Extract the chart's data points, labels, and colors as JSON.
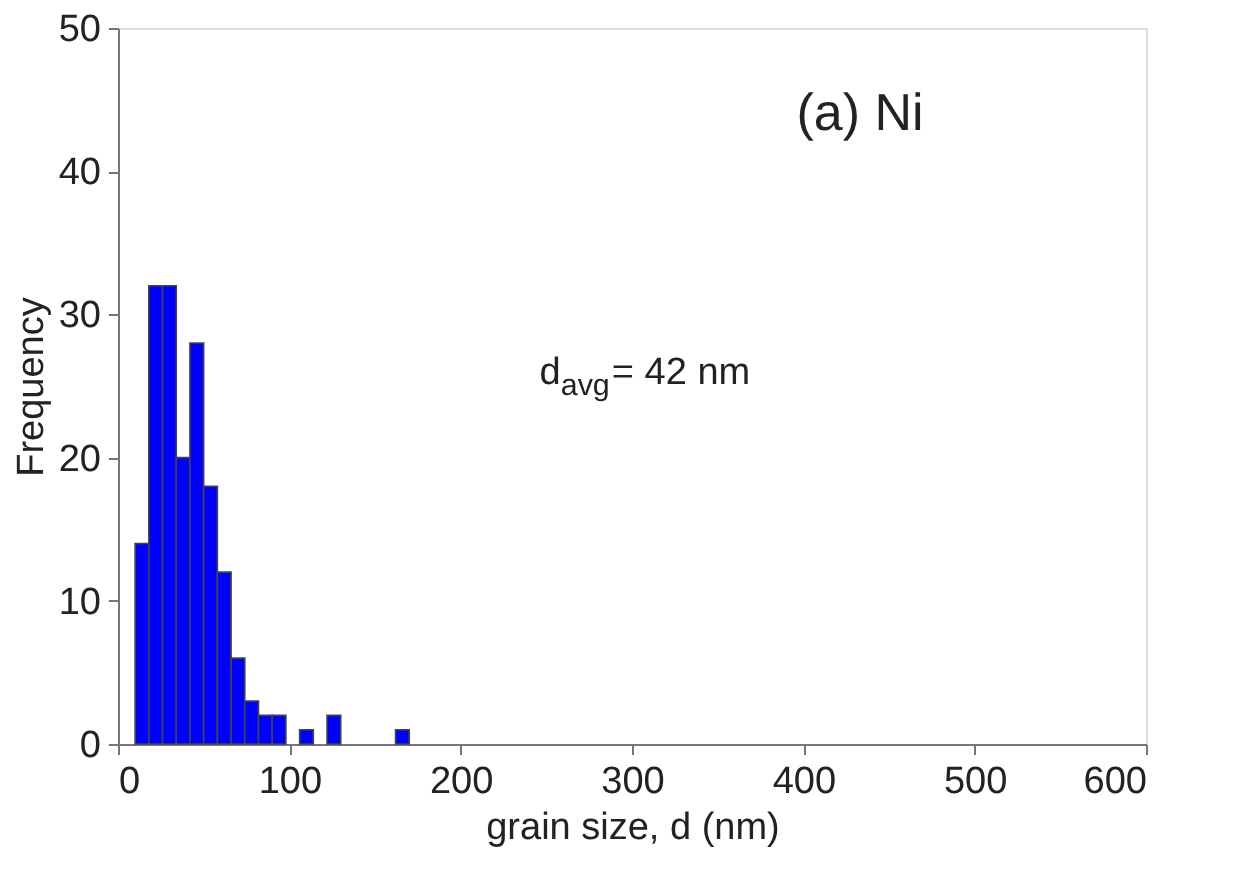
{
  "chart_data": {
    "type": "histogram",
    "xlabel": "grain size, d (nm)",
    "ylabel": "Frequency",
    "bins": [
      10,
      18,
      26,
      34,
      42,
      50,
      58,
      66,
      74,
      82,
      90,
      98,
      106,
      114,
      122,
      130,
      138,
      146,
      154,
      162,
      170
    ],
    "values": [
      14,
      32,
      32,
      20,
      28,
      18,
      12,
      6,
      3,
      2,
      2,
      0,
      1,
      0,
      2,
      0,
      0,
      0,
      0,
      1
    ],
    "color": "#0000ff",
    "xlim": [
      0,
      600
    ],
    "xticks": [
      0,
      100,
      200,
      300,
      400,
      500,
      600
    ],
    "ylim": [
      0,
      50
    ],
    "yticks": [
      0,
      10,
      20,
      30,
      40,
      50
    ],
    "grid": false,
    "annotations": [
      "(a) Ni",
      "d$_{avg}$= 42 nm"
    ]
  }
}
